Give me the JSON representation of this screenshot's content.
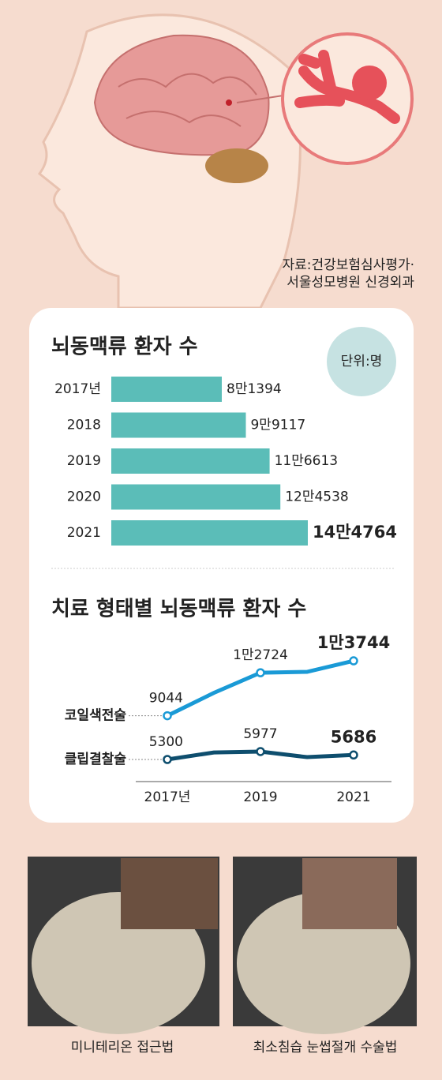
{
  "source": [
    "자료:건강보험심사평가·",
    "서울성모병원 신경외과"
  ],
  "unit": "단위:명",
  "chart_data": [
    {
      "type": "bar",
      "title": "뇌동맥류 환자 수",
      "categories": [
        "2017년",
        "2018",
        "2019",
        "2020",
        "2021"
      ],
      "values": [
        81394,
        99117,
        116613,
        124538,
        144764
      ],
      "value_labels": [
        "8만1394",
        "9만9117",
        "11만6613",
        "12만4538",
        "14만4764"
      ],
      "color": "#5bbdb8"
    },
    {
      "type": "line",
      "title": "치료 형태별 뇌동맥류 환자 수",
      "categories": [
        "2017년",
        null,
        "2019",
        null,
        "2021"
      ],
      "series": [
        {
          "name": "코일색전술",
          "color": "#1a9ad6",
          "values": [
            9044,
            11000,
            12724,
            12800,
            13744
          ],
          "value_labels": [
            "9044",
            null,
            "1만2724",
            null,
            "1만3744"
          ]
        },
        {
          "name": "클립결찰술",
          "color": "#0e4e6e",
          "values": [
            5300,
            5900,
            5977,
            5500,
            5686
          ],
          "value_labels": [
            "5300",
            null,
            "5977",
            null,
            "5686"
          ]
        }
      ]
    }
  ],
  "photos": [
    {
      "caption": "미니테리온 접근법"
    },
    {
      "caption": "최소침습 눈썹절개 수술법"
    }
  ]
}
